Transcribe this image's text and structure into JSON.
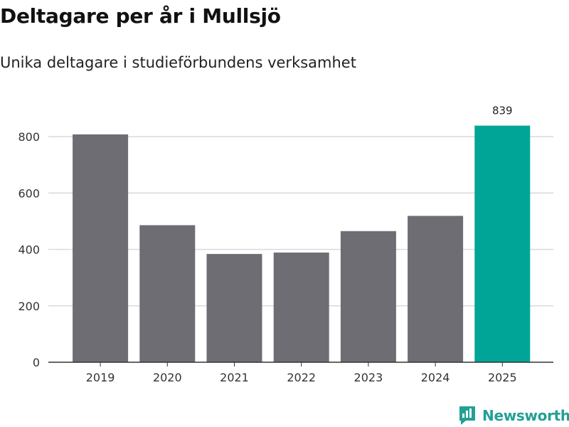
{
  "title": "Deltagare per år i Mullsjö",
  "subtitle": "Unika deltagare i studieförbundens verksamhet",
  "brand": {
    "name": "Newsworthy",
    "color": "#22a094",
    "icon": "newsworthy-logo-icon"
  },
  "colors": {
    "bar_default": "#6e6d73",
    "bar_highlight": "#00a597",
    "grid": "#d9d9d9",
    "axis": "#333333"
  },
  "chart_data": {
    "type": "bar",
    "categories": [
      "2019",
      "2020",
      "2021",
      "2022",
      "2023",
      "2024",
      "2025"
    ],
    "values": [
      808,
      486,
      384,
      389,
      465,
      519,
      839
    ],
    "highlight_index": 6,
    "data_labels": [
      {
        "index": 6,
        "text": "839"
      }
    ],
    "yticks": [
      0,
      200,
      400,
      600,
      800
    ],
    "ylim": [
      0,
      800
    ],
    "grid": true,
    "legend": "none"
  }
}
